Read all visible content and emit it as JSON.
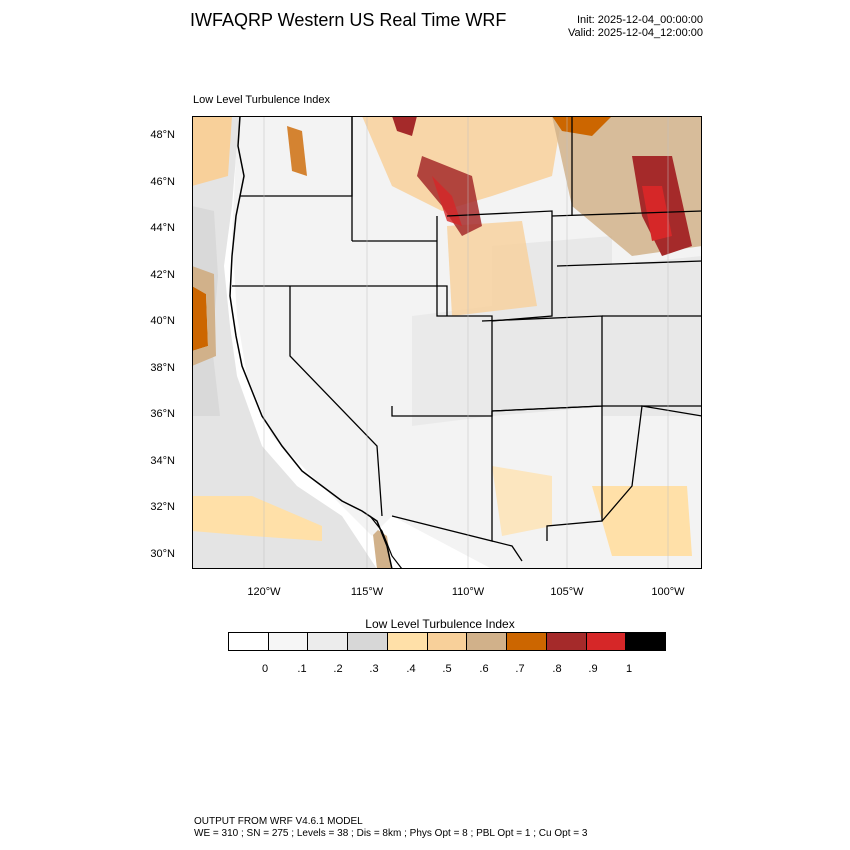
{
  "header": {
    "title": "IWFAQRP Western US Real Time WRF",
    "init": "Init: 2025-12-04_00:00:00",
    "valid": "Valid: 2025-12-04_12:00:00"
  },
  "map": {
    "field_label": "Low Level Turbulence Index",
    "lat_labels": [
      "48°N",
      "46°N",
      "44°N",
      "42°N",
      "40°N",
      "38°N",
      "36°N",
      "34°N",
      "32°N",
      "30°N"
    ],
    "lon_labels": [
      "120°W",
      "115°W",
      "110°W",
      "105°W",
      "100°W"
    ]
  },
  "colorbar": {
    "title": "Low Level Turbulence Index",
    "colors": [
      "#ffffff",
      "#f6f6f6",
      "#ececec",
      "#d7d7d7",
      "#ffe0a8",
      "#f8d09a",
      "#d1b18a",
      "#cc6600",
      "#a52a2a",
      "#d62728",
      "#000000"
    ],
    "labels": [
      "0",
      ".1",
      ".2",
      ".3",
      ".4",
      ".5",
      ".6",
      ".7",
      ".8",
      ".9",
      "1"
    ]
  },
  "footer": {
    "line1": "OUTPUT FROM WRF V4.6.1 MODEL",
    "line2": "WE = 310 ; SN = 275 ; Levels = 38 ; Dis = 8km ; Phys Opt = 8 ; PBL Opt = 1 ; Cu Opt = 3"
  }
}
